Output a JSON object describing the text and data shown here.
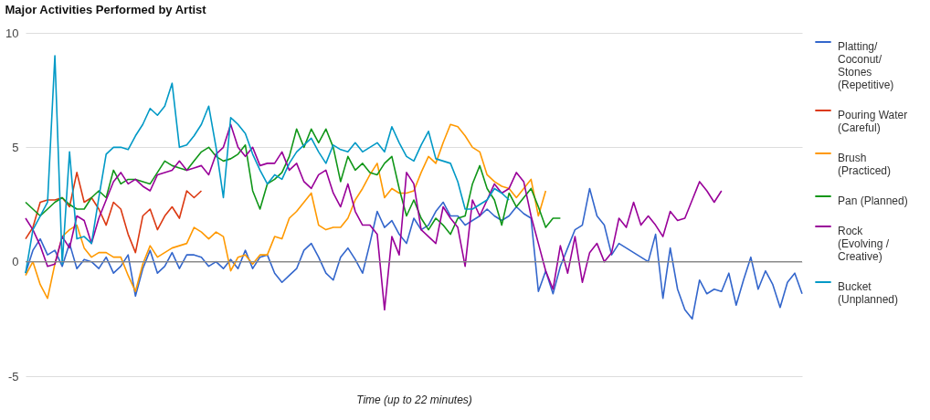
{
  "chart_data": {
    "type": "line",
    "title": "Major Activities Performed by Artist",
    "xlabel": "Time (up to 22 minutes)",
    "categories": [
      null,
      null,
      null,
      null,
      null,
      null,
      null,
      null,
      null,
      null,
      null,
      null,
      null,
      null,
      null,
      null,
      null,
      null,
      null,
      null,
      null,
      null,
      null,
      null,
      null,
      null,
      null,
      null,
      null,
      null,
      null,
      null,
      null,
      null,
      null,
      null,
      null,
      null,
      null,
      null,
      null,
      null,
      null,
      null,
      null,
      null,
      null,
      null,
      null,
      null,
      null,
      null,
      null,
      null,
      null,
      null,
      null,
      null,
      null,
      null,
      null,
      null,
      null,
      null,
      null,
      null,
      null,
      null,
      null,
      null,
      null,
      null,
      null,
      null,
      null,
      null,
      null,
      null,
      null,
      null,
      null,
      null,
      null,
      null,
      null,
      null,
      null,
      null,
      null,
      null,
      null,
      null,
      null,
      null,
      null,
      null,
      null,
      null,
      null,
      null,
      null,
      null,
      null,
      null,
      null,
      null,
      null
    ],
    "ylim": [
      -5,
      10
    ],
    "yticks": [
      -5,
      0,
      5,
      10
    ],
    "grid": "y",
    "legend": "right",
    "tick_labels": "y",
    "line_style": "solid",
    "ref_lines": [
      {
        "axis": "y",
        "value": 0,
        "color": "#888888"
      }
    ],
    "series": [
      {
        "name": "Platting/ Coconut/ Stones (Repetitive)",
        "color": "#3366cc",
        "values": [
          -0.5,
          0.5,
          1.0,
          0.3,
          0.5,
          -0.2,
          0.8,
          -0.3,
          0.1,
          0,
          -0.3,
          0.2,
          -0.5,
          -0.2,
          0.3,
          -1.5,
          -0.3,
          0.5,
          -0.5,
          -0.2,
          0.4,
          -0.3,
          0.3,
          0.3,
          0.2,
          -0.2,
          0,
          -0.3,
          0.1,
          -0.3,
          0.5,
          -0.3,
          0.2,
          0.3,
          -0.5,
          -0.9,
          -0.6,
          -0.3,
          0.5,
          0.8,
          0.2,
          -0.5,
          -0.8,
          0.2,
          0.6,
          0.1,
          -0.5,
          0.8,
          2.2,
          1.5,
          1.8,
          1.2,
          0.8,
          1.9,
          1.4,
          1.6,
          2.2,
          2.6,
          2.0,
          2.0,
          1.6,
          1.8,
          2.0,
          2.3,
          2.0,
          1.8,
          2.0,
          2.4,
          2.1,
          1.9,
          -1.3,
          -0.4,
          -1.4,
          -0.2,
          0.6,
          1.4,
          1.6,
          3.2,
          2.0,
          1.6,
          0.3,
          0.8,
          0.6,
          0.4,
          0.2,
          0.0,
          1.2,
          -1.6,
          0.6,
          -1.2,
          -2.1,
          -2.5,
          -0.8,
          -1.4,
          -1.2,
          -1.3,
          -0.5,
          -1.9,
          -0.8,
          0.2,
          -1.2,
          -0.4,
          -1.0,
          -2.0,
          -0.9,
          -0.5,
          -1.4
        ]
      },
      {
        "name": "Pouring Water (Careful)",
        "color": "#dc3912",
        "values": [
          1.0,
          1.5,
          2.6,
          2.7,
          2.7,
          2.8,
          2.4,
          3.9,
          2.6,
          2.8,
          2.3,
          1.6,
          2.6,
          2.3,
          1.2,
          0.4,
          2.0,
          2.3,
          1.4,
          2.0,
          2.4,
          1.9,
          3.1,
          2.8,
          3.1,
          null,
          null,
          null,
          null,
          null,
          null,
          null,
          null,
          null,
          null,
          null,
          null,
          null,
          null,
          null,
          null,
          null,
          null,
          null,
          null,
          null,
          null,
          null,
          null,
          null,
          null,
          null,
          null,
          null,
          null,
          null,
          null,
          null,
          null,
          null,
          null,
          null,
          null,
          null,
          null,
          null,
          null,
          null,
          null,
          null,
          null,
          null,
          null,
          null,
          null,
          null,
          null,
          null,
          null,
          null,
          null,
          null,
          null,
          null,
          null,
          null,
          null,
          null,
          null,
          null,
          null,
          null,
          null,
          null,
          null,
          null,
          null,
          null,
          null,
          null,
          null,
          null,
          null,
          null,
          null,
          null,
          null
        ]
      },
      {
        "name": "Brush (Practiced)",
        "color": "#ff9900",
        "values": [
          -0.6,
          0,
          -1.0,
          -1.6,
          -0.1,
          1.1,
          1.4,
          1.6,
          0.6,
          0.2,
          0.4,
          0.4,
          0.2,
          0.2,
          -0.6,
          -1.3,
          -0.1,
          0.7,
          0.2,
          0.4,
          0.6,
          0.7,
          0.8,
          1.5,
          1.3,
          1.0,
          1.3,
          1.1,
          -0.4,
          0.2,
          0.3,
          -0.1,
          0.3,
          0.3,
          1.1,
          1.0,
          1.9,
          2.2,
          2.6,
          3.0,
          1.6,
          1.4,
          1.5,
          1.5,
          1.9,
          2.7,
          3.2,
          3.8,
          4.3,
          2.8,
          3.2,
          3.0,
          3.0,
          3.1,
          3.9,
          4.6,
          4.3,
          5.2,
          6.0,
          5.9,
          5.5,
          5.0,
          4.8,
          3.8,
          3.5,
          3.3,
          3.2,
          2.8,
          3.2,
          3.6,
          2.0,
          3.1,
          null,
          null,
          null,
          null,
          null,
          null,
          null,
          null,
          null,
          null,
          null,
          null,
          null,
          null,
          null,
          null,
          null,
          null,
          null,
          null,
          null,
          null,
          null,
          null,
          null,
          null,
          null,
          null,
          null,
          null,
          null,
          null,
          null,
          null,
          null
        ]
      },
      {
        "name": "Pan (Planned)",
        "color": "#109618",
        "values": [
          2.6,
          2.3,
          2.0,
          2.3,
          2.6,
          2.8,
          2.5,
          2.3,
          2.3,
          2.8,
          3.1,
          2.8,
          4.0,
          3.4,
          3.6,
          3.6,
          3.5,
          3.4,
          3.9,
          4.4,
          4.2,
          4.1,
          4.0,
          4.4,
          4.8,
          5.0,
          4.6,
          4.4,
          4.5,
          4.7,
          5.1,
          3.1,
          2.3,
          3.4,
          3.6,
          3.9,
          4.6,
          5.8,
          5.0,
          5.8,
          5.2,
          5.8,
          5.0,
          3.5,
          4.6,
          4.0,
          4.3,
          3.9,
          3.8,
          4.3,
          4.6,
          3.2,
          2.0,
          2.7,
          1.9,
          1.4,
          1.9,
          1.6,
          1.2,
          1.9,
          2.0,
          3.4,
          4.2,
          3.2,
          2.7,
          1.6,
          3.0,
          2.4,
          2.8,
          3.2,
          2.4,
          1.5,
          1.9,
          1.9,
          null,
          null,
          null,
          null,
          null,
          null,
          null,
          null,
          null,
          null,
          null,
          null,
          null,
          null,
          null,
          null,
          null,
          null,
          null,
          null,
          null,
          null,
          null,
          null,
          null,
          null,
          null,
          null,
          null,
          null,
          null,
          null,
          null
        ]
      },
      {
        "name": "Rock (Evolving / Creative)",
        "color": "#990099",
        "values": [
          1.9,
          1.4,
          0.7,
          -0.2,
          -0.1,
          1.1,
          0.6,
          2.0,
          1.8,
          0.8,
          1.9,
          2.7,
          3.5,
          3.9,
          3.4,
          3.6,
          3.3,
          3.1,
          3.8,
          3.9,
          4.0,
          4.4,
          4.0,
          4.1,
          4.2,
          3.8,
          4.7,
          5.0,
          6.0,
          5.0,
          4.6,
          5.0,
          4.2,
          4.3,
          4.3,
          4.8,
          4.0,
          4.3,
          3.5,
          3.2,
          3.8,
          4.0,
          3.0,
          2.4,
          3.4,
          2.2,
          1.6,
          1.6,
          1.2,
          -2.1,
          1.1,
          0.3,
          3.9,
          3.4,
          1.4,
          1.1,
          0.8,
          2.4,
          1.9,
          1.5,
          -0.2,
          2.7,
          2.0,
          2.7,
          3.4,
          3.0,
          3.2,
          3.9,
          3.5,
          2.0,
          0.8,
          -0.4,
          -1.2,
          0.7,
          -0.5,
          1.1,
          -0.9,
          0.4,
          0.8,
          0.0,
          0.4,
          1.9,
          1.5,
          2.6,
          1.6,
          2.0,
          1.6,
          1.1,
          2.2,
          1.8,
          1.9,
          2.7,
          3.5,
          3.1,
          2.6,
          3.1,
          null,
          null,
          null,
          null,
          null,
          null,
          null,
          null,
          null,
          null,
          null
        ]
      },
      {
        "name": "Bucket (Unplanned)",
        "color": "#0099c6",
        "values": [
          -0.5,
          1.4,
          2.0,
          2.6,
          9.0,
          -0.1,
          4.8,
          1.0,
          1.1,
          0.8,
          2.8,
          4.7,
          5.0,
          5.0,
          4.9,
          5.5,
          6.0,
          6.7,
          6.4,
          6.8,
          7.8,
          5.0,
          5.1,
          5.5,
          6.0,
          6.8,
          5.0,
          2.8,
          6.3,
          6.0,
          5.6,
          4.7,
          4.0,
          3.4,
          3.8,
          3.6,
          4.3,
          4.8,
          5.1,
          5.4,
          4.8,
          4.3,
          5.1,
          4.9,
          4.8,
          5.2,
          4.8,
          5.0,
          5.2,
          4.8,
          5.9,
          5.2,
          4.6,
          4.4,
          5.1,
          5.7,
          4.5,
          4.4,
          4.3,
          3.5,
          2.3,
          2.3,
          2.5,
          2.7,
          3.2,
          3.0,
          2.7,
          null,
          null,
          null,
          null,
          null,
          null,
          null,
          null,
          null,
          null,
          null,
          null,
          null,
          null,
          null,
          null,
          null,
          null,
          null,
          null,
          null,
          null,
          null,
          null,
          null,
          null,
          null,
          null,
          null,
          null,
          null,
          null,
          null,
          null,
          null,
          null,
          null,
          null,
          null,
          null
        ]
      }
    ]
  }
}
